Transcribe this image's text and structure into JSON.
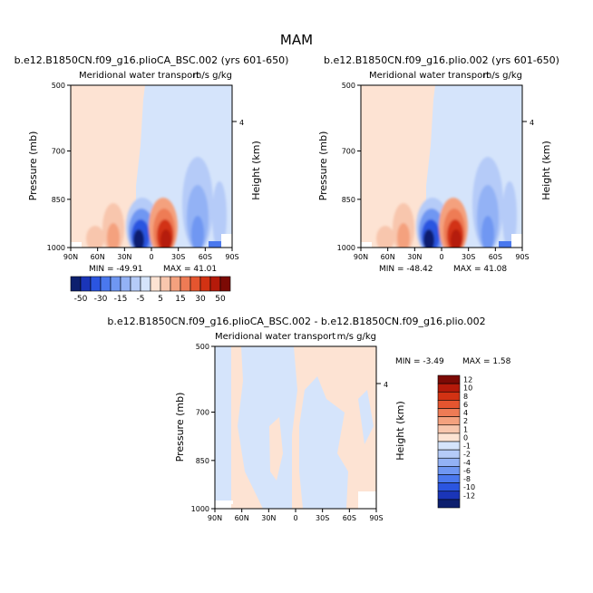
{
  "title": "MAM",
  "shared": {
    "y_ticks": [
      "500",
      "700",
      "850",
      "1000"
    ],
    "x_ticks": [
      "90N",
      "60N",
      "30N",
      "0",
      "30S",
      "60S",
      "90S"
    ],
    "ylabel": "Pressure (mb)",
    "ylabel_right": "Height (km)",
    "height_tick": "4",
    "subtitle": "Meridional water transport",
    "units": "m/s g/kg"
  },
  "panels": [
    {
      "header": "b.e12.B1850CN.f09_g16.plioCA_BSC.002 (yrs 601-650)",
      "min_label": "MIN = -49.91",
      "max_label": "MAX = 41.01"
    },
    {
      "header": "b.e12.B1850CN.f09_g16.plio.002 (yrs 601-650)",
      "min_label": "MIN = -48.42",
      "max_label": "MAX = 41.08"
    },
    {
      "header": "b.e12.B1850CN.f09_g16.plioCA_BSC.002 - b.e12.B1850CN.f09_g16.plio.002",
      "min_label": "MIN = -3.49",
      "max_label": "MAX = 1.58"
    }
  ],
  "colorbars": {
    "top": {
      "labels": [
        "-50",
        "-30",
        "-15",
        "-5",
        "5",
        "15",
        "30",
        "50"
      ],
      "colors": [
        "#0d1f6e",
        "#1a35b8",
        "#2b55e0",
        "#4a78ee",
        "#6f97f2",
        "#93b2f5",
        "#b5cbf8",
        "#d5e4fb",
        "#fde3d3",
        "#f8c6ad",
        "#f4a17e",
        "#ee7b55",
        "#e5552f",
        "#d23213",
        "#b51a0a",
        "#7c0a05"
      ]
    },
    "bottom": {
      "labels": [
        "12",
        "10",
        "8",
        "6",
        "4",
        "2",
        "1",
        "0",
        "-1",
        "-2",
        "-4",
        "-6",
        "-8",
        "-10",
        "-12"
      ],
      "colors": [
        "#7c0a05",
        "#b51a0a",
        "#d23213",
        "#e5552f",
        "#ee7b55",
        "#f4a17e",
        "#f8c6ad",
        "#fde3d3",
        "#d5e4fb",
        "#b5cbf8",
        "#93b2f5",
        "#6f97f2",
        "#4a78ee",
        "#2b55e0",
        "#1a35b8",
        "#0d1f6e"
      ]
    }
  },
  "chart_data": [
    {
      "type": "heatmap",
      "title": "b.e12.B1850CN.f09_g16.plioCA_BSC.002 (yrs 601-650)",
      "subtitle": "Meridional water transport",
      "units": "m/s g/kg",
      "ylabel": "Pressure (mb)",
      "ylabel_right": "Height (km)",
      "x_range": [
        "90N",
        "90S"
      ],
      "y_range": [
        500,
        1000
      ],
      "min": -49.91,
      "max": 41.01,
      "features": [
        {
          "lat": 12,
          "p": 960,
          "value": -45
        },
        {
          "lat": -12,
          "p": 960,
          "value": 38
        },
        {
          "lat": 45,
          "p": 965,
          "value": 15
        },
        {
          "lat": 25,
          "p": 965,
          "value": 10
        },
        {
          "lat": -45,
          "p": 900,
          "value": -15
        },
        {
          "lat": -70,
          "p": 900,
          "value": -5
        }
      ]
    },
    {
      "type": "heatmap",
      "title": "b.e12.B1850CN.f09_g16.plio.002 (yrs 601-650)",
      "subtitle": "Meridional water transport",
      "units": "m/s g/kg",
      "ylabel": "Pressure (mb)",
      "ylabel_right": "Height (km)",
      "x_range": [
        "90N",
        "90S"
      ],
      "y_range": [
        500,
        1000
      ],
      "min": -48.42,
      "max": 41.08,
      "features": [
        {
          "lat": 12,
          "p": 960,
          "value": -44
        },
        {
          "lat": -12,
          "p": 960,
          "value": 38
        },
        {
          "lat": 45,
          "p": 965,
          "value": 15
        },
        {
          "lat": 25,
          "p": 965,
          "value": 10
        },
        {
          "lat": -45,
          "p": 900,
          "value": -15
        },
        {
          "lat": -70,
          "p": 900,
          "value": -5
        }
      ]
    },
    {
      "type": "heatmap",
      "title": "b.e12.B1850CN.f09_g16.plioCA_BSC.002 - b.e12.B1850CN.f09_g16.plio.002",
      "subtitle": "Meridional water transport",
      "units": "m/s g/kg",
      "ylabel": "Pressure (mb)",
      "ylabel_right": "Height (km)",
      "x_range": [
        "90N",
        "90S"
      ],
      "y_range": [
        500,
        1000
      ],
      "min": -3.49,
      "max": 1.58
    }
  ]
}
